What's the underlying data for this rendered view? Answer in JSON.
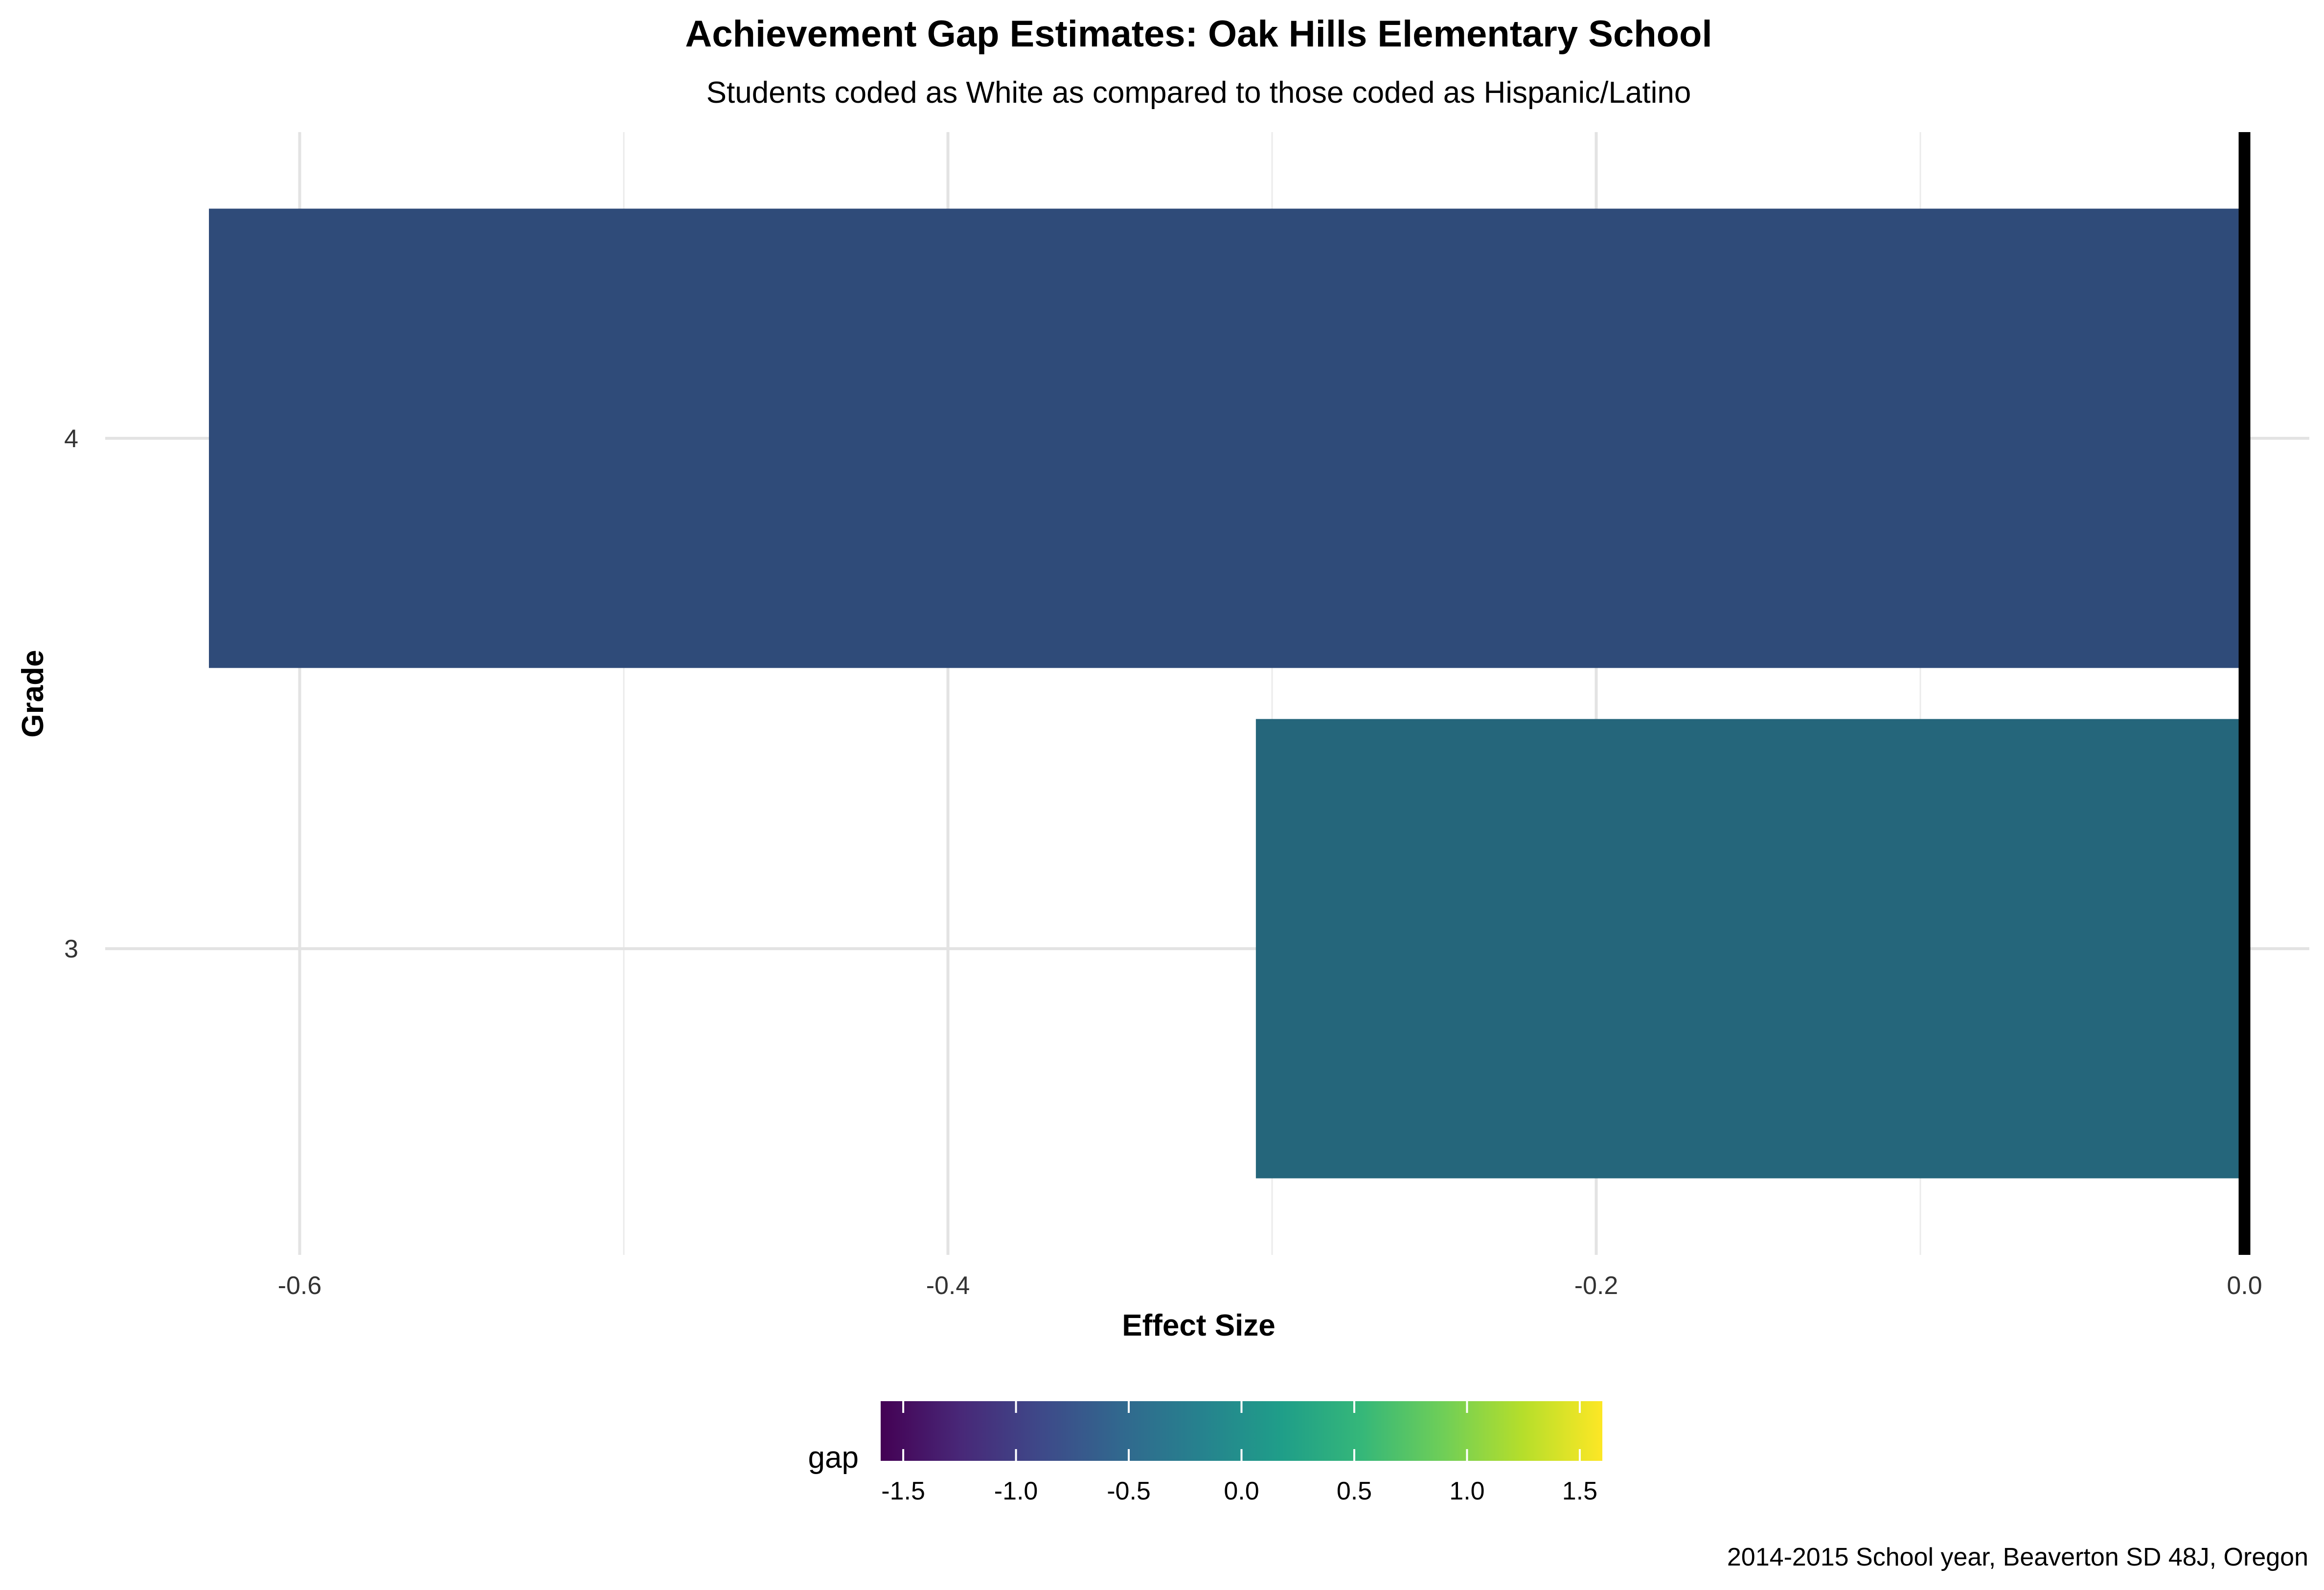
{
  "chart_data": {
    "type": "bar",
    "orientation": "horizontal",
    "title": "Achievement Gap Estimates: Oak Hills Elementary School",
    "subtitle": "Students coded as White as compared to those coded as Hispanic/Latino",
    "xlabel": "Effect Size",
    "ylabel": "Grade",
    "caption": "2014-2015 School year, Beaverton SD 48J, Oregon",
    "categories": [
      "3",
      "4"
    ],
    "values": [
      -0.305,
      -0.628
    ],
    "bar_colors": [
      "#25667b",
      "#2f4b79"
    ],
    "xlim": [
      -0.66,
      0.02
    ],
    "xticks": [
      -0.6,
      -0.4,
      -0.2,
      0.0
    ],
    "xtick_labels": [
      "-0.6",
      "-0.4",
      "-0.2",
      "0.0"
    ],
    "reference_line": 0.0,
    "grid": true,
    "legend": {
      "title": "gap",
      "type": "colorbar",
      "position": "bottom",
      "range": [
        -1.6,
        1.6
      ],
      "ticks": [
        -1.5,
        -1.0,
        -0.5,
        0.0,
        0.5,
        1.0,
        1.5
      ],
      "tick_labels": [
        "-1.5",
        "-1.0",
        "-0.5",
        "0.0",
        "0.5",
        "1.0",
        "1.5"
      ],
      "palette": "viridis",
      "colors": [
        "#440154",
        "#482878",
        "#3e4989",
        "#31688e",
        "#26828e",
        "#1f9e89",
        "#35b779",
        "#6ece58",
        "#b5de2b",
        "#fde725"
      ]
    }
  }
}
